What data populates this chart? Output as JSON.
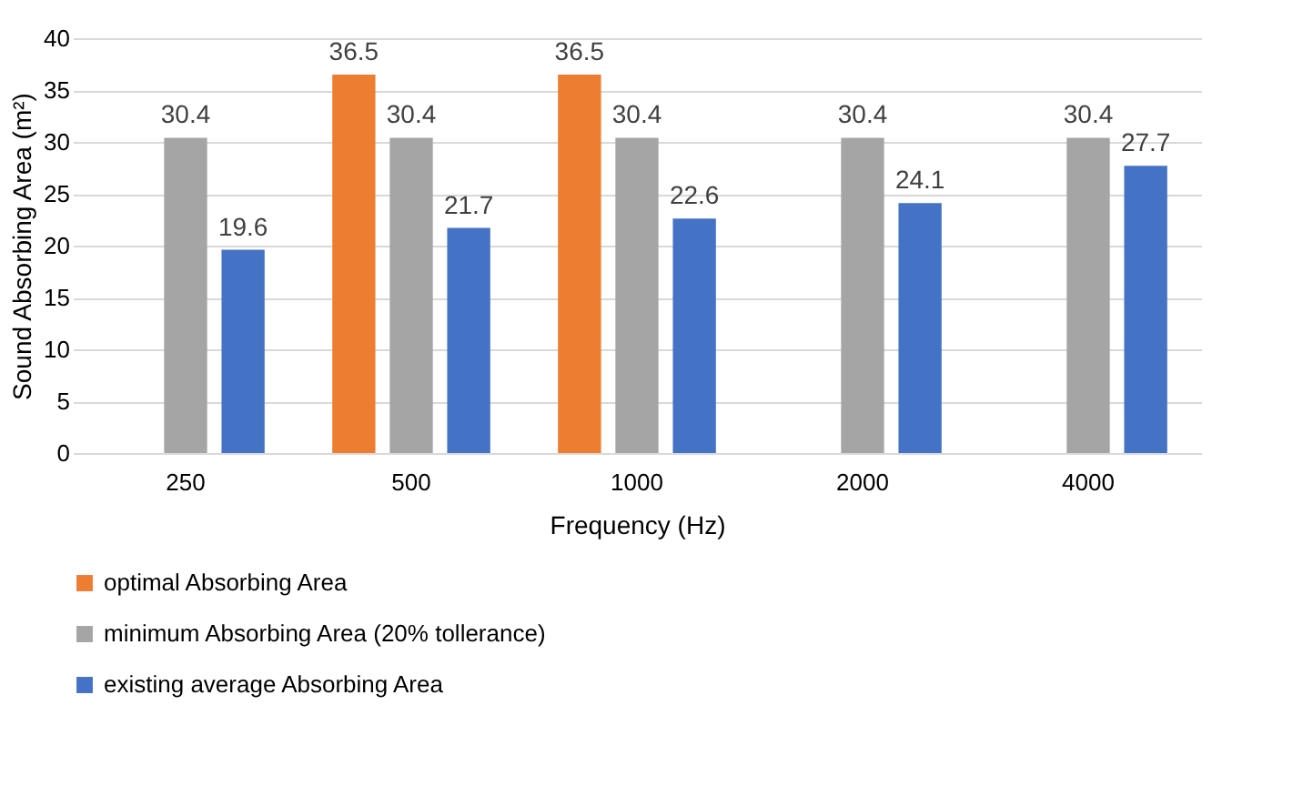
{
  "chart_data": {
    "type": "bar",
    "xlabel": "Frequency (Hz)",
    "ylabel": "Sound Absorbing Area (m²)",
    "categories": [
      "250",
      "500",
      "1000",
      "2000",
      "4000"
    ],
    "series": [
      {
        "name": "optimal Absorbing Area",
        "color": "#ed7d31",
        "values": [
          null,
          36.5,
          36.5,
          null,
          null
        ]
      },
      {
        "name": "minimum Absorbing Area (20% tollerance)",
        "color": "#a5a5a5",
        "values": [
          30.4,
          30.4,
          30.4,
          30.4,
          30.4
        ]
      },
      {
        "name": "existing average Absorbing Area",
        "color": "#4472c4",
        "values": [
          19.6,
          21.7,
          22.6,
          24.1,
          27.7
        ]
      }
    ],
    "ylim": [
      0,
      40
    ],
    "yticks": [
      0,
      5,
      10,
      15,
      20,
      25,
      30,
      35,
      40
    ],
    "grid": "y",
    "legend": "bottom",
    "data_labels": true
  }
}
